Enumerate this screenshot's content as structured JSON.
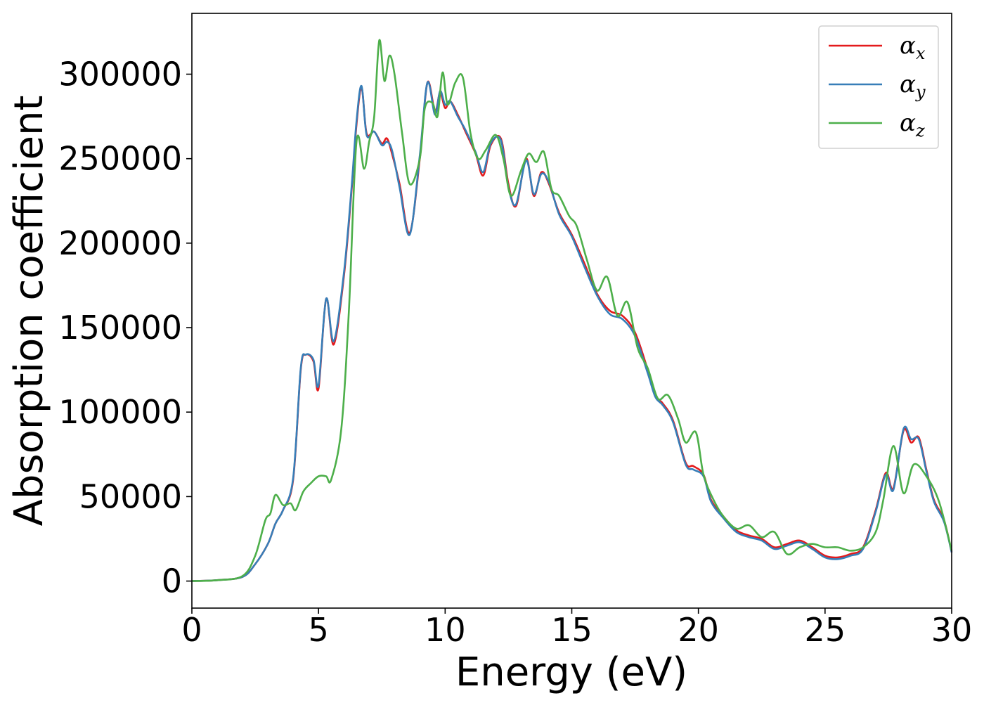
{
  "chart_data": {
    "type": "line",
    "title": "",
    "xlabel": "Energy (eV)",
    "ylabel": "Absorption coefficient",
    "xlim": [
      0,
      30
    ],
    "ylim": [
      -16000,
      336000
    ],
    "xticks": [
      0,
      5,
      10,
      15,
      20,
      25,
      30
    ],
    "yticks": [
      0,
      50000,
      100000,
      150000,
      200000,
      250000,
      300000
    ],
    "grid": false,
    "legend_position": "top-right",
    "series": [
      {
        "name": "αx",
        "label_main": "α",
        "label_sub": "x",
        "color": "#e41a1c",
        "x": [
          0,
          1,
          2,
          2.5,
          3,
          3.3,
          3.6,
          4,
          4.3,
          4.5,
          4.8,
          5,
          5.3,
          5.6,
          6,
          6.3,
          6.5,
          6.7,
          6.9,
          7.2,
          7.5,
          7.7,
          7.9,
          8.2,
          8.6,
          9,
          9.3,
          9.6,
          9.8,
          10,
          10.2,
          10.5,
          10.8,
          11.2,
          11.5,
          11.8,
          12.2,
          12.5,
          12.8,
          13.2,
          13.5,
          13.8,
          14.1,
          14.5,
          15,
          15.5,
          16,
          16.5,
          17,
          17.5,
          18,
          18.3,
          18.6,
          19,
          19.5,
          19.8,
          20.2,
          20.5,
          21,
          21.5,
          22,
          22.5,
          23,
          23.5,
          24,
          24.5,
          25,
          25.5,
          26,
          26.5,
          27,
          27.4,
          27.7,
          28.1,
          28.4,
          28.7,
          29,
          29.3,
          29.7,
          30
        ],
        "y": [
          0,
          500,
          2500,
          10000,
          22000,
          34000,
          42000,
          60000,
          125000,
          134000,
          130000,
          114000,
          167000,
          140000,
          180000,
          230000,
          270000,
          292000,
          265000,
          266000,
          259000,
          262000,
          253000,
          235000,
          206000,
          250000,
          295000,
          278000,
          289000,
          280000,
          284000,
          276000,
          266000,
          253000,
          240000,
          258000,
          262000,
          235000,
          222000,
          250000,
          228000,
          242000,
          235000,
          218000,
          205000,
          188000,
          170000,
          160000,
          157000,
          147000,
          125000,
          110000,
          105000,
          95000,
          70000,
          68000,
          63000,
          48000,
          38000,
          30000,
          27000,
          25000,
          20000,
          22000,
          24000,
          20000,
          15000,
          14000,
          16000,
          20000,
          42000,
          64000,
          55000,
          89000,
          82000,
          85000,
          66000,
          48000,
          36000,
          17000
        ]
      },
      {
        "name": "αy",
        "label_main": "α",
        "label_sub": "y",
        "color": "#377eb8",
        "x": [
          0,
          1,
          2,
          2.5,
          3,
          3.3,
          3.6,
          4,
          4.3,
          4.5,
          4.8,
          5,
          5.3,
          5.6,
          6,
          6.3,
          6.5,
          6.7,
          6.9,
          7.2,
          7.5,
          7.7,
          7.9,
          8.2,
          8.6,
          9,
          9.3,
          9.6,
          9.8,
          10,
          10.2,
          10.5,
          10.8,
          11.2,
          11.5,
          11.8,
          12.2,
          12.5,
          12.8,
          13.2,
          13.5,
          13.8,
          14.1,
          14.5,
          15,
          15.5,
          16,
          16.5,
          17,
          17.5,
          18,
          18.3,
          18.6,
          19,
          19.5,
          19.8,
          20.2,
          20.5,
          21,
          21.5,
          22,
          22.5,
          23,
          23.5,
          24,
          24.5,
          25,
          25.5,
          26,
          26.5,
          27,
          27.4,
          27.7,
          28.1,
          28.4,
          28.7,
          29,
          29.3,
          29.7,
          30
        ],
        "y": [
          0,
          500,
          2500,
          10000,
          22000,
          34000,
          42000,
          61000,
          126000,
          134000,
          131000,
          116000,
          167000,
          142000,
          182000,
          232000,
          272000,
          293000,
          264000,
          266000,
          258000,
          260000,
          255000,
          233000,
          205000,
          252000,
          295000,
          276000,
          290000,
          282000,
          284000,
          275000,
          267000,
          254000,
          242000,
          259000,
          261000,
          233000,
          223000,
          249000,
          229000,
          241000,
          236000,
          217000,
          204000,
          186000,
          169000,
          158000,
          155000,
          145000,
          123000,
          109000,
          104000,
          94000,
          69000,
          66000,
          62000,
          47000,
          37000,
          29000,
          26000,
          24000,
          19000,
          21000,
          23000,
          19000,
          14000,
          13000,
          15000,
          19000,
          41000,
          63000,
          54000,
          90000,
          84000,
          84000,
          65000,
          47000,
          35000,
          17000
        ]
      },
      {
        "name": "αz",
        "label_main": "α",
        "label_sub": "z",
        "color": "#4daf4a",
        "x": [
          0,
          1,
          2,
          2.5,
          2.9,
          3.1,
          3.3,
          3.6,
          3.9,
          4.1,
          4.4,
          4.7,
          5,
          5.3,
          5.5,
          5.9,
          6.2,
          6.5,
          6.8,
          7,
          7.2,
          7.4,
          7.6,
          7.8,
          8,
          8.3,
          8.6,
          9,
          9.2,
          9.5,
          9.7,
          9.9,
          10.1,
          10.4,
          10.7,
          11,
          11.3,
          11.6,
          12,
          12.3,
          12.6,
          13,
          13.3,
          13.6,
          13.9,
          14.2,
          14.5,
          14.9,
          15.2,
          15.6,
          16,
          16.4,
          16.8,
          17.2,
          17.6,
          18,
          18.4,
          18.8,
          19.2,
          19.5,
          19.9,
          20.2,
          20.6,
          21,
          21.5,
          22,
          22.5,
          23,
          23.5,
          24,
          24.5,
          25,
          25.5,
          26,
          26.5,
          27,
          27.3,
          27.7,
          28.1,
          28.5,
          29,
          29.5,
          30
        ],
        "y": [
          0,
          500,
          3000,
          15000,
          36000,
          40000,
          51000,
          45000,
          46000,
          42000,
          53000,
          58000,
          62000,
          62000,
          60000,
          90000,
          160000,
          260000,
          244000,
          260000,
          275000,
          320000,
          296000,
          311000,
          300000,
          265000,
          235000,
          250000,
          280000,
          283000,
          275000,
          301000,
          282000,
          295000,
          298000,
          265000,
          250000,
          255000,
          264000,
          250000,
          228000,
          243000,
          253000,
          248000,
          254000,
          232000,
          228000,
          216000,
          210000,
          190000,
          172000,
          180000,
          157000,
          165000,
          138000,
          126000,
          108000,
          110000,
          96000,
          82000,
          88000,
          63000,
          48000,
          38000,
          31000,
          33000,
          26000,
          29000,
          16000,
          20000,
          22000,
          20000,
          20000,
          18000,
          20000,
          29000,
          48000,
          80000,
          52000,
          69000,
          62000,
          47000,
          18000
        ]
      }
    ]
  }
}
